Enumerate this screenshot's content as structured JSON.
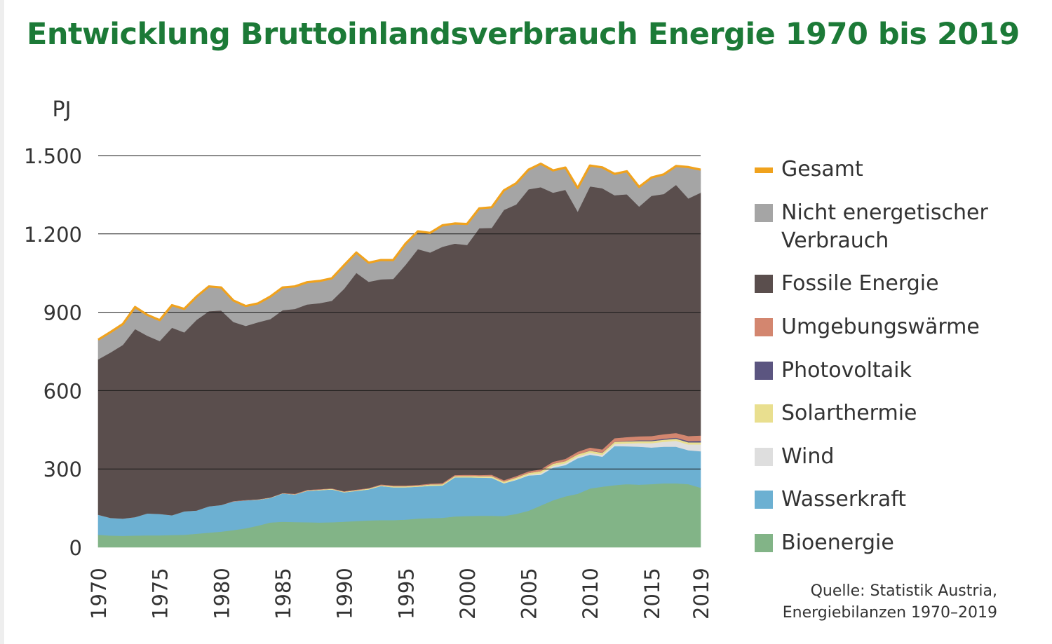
{
  "chart_data": {
    "type": "area",
    "stacked": true,
    "title": "Entwicklung Bruttoinlandsverbrauch Energie 1970 bis 2019",
    "ylabel": "PJ",
    "xlabel": "",
    "ylim": [
      0,
      1500
    ],
    "yticks": [
      0,
      300,
      600,
      900,
      1200,
      1500
    ],
    "ytick_labels": [
      "0",
      "300",
      "600",
      "900",
      "1.200",
      "1.500"
    ],
    "xticks": [
      1970,
      1975,
      1980,
      1985,
      1990,
      1995,
      2000,
      2005,
      2010,
      2015,
      2019
    ],
    "xtick_labels": [
      "1970",
      "1975",
      "1980",
      "1985",
      "1990",
      "1995",
      "2000",
      "2005",
      "2010",
      "2015",
      "2019"
    ],
    "grid": "horizontal",
    "legend_position": "right",
    "x": [
      1970,
      1971,
      1972,
      1973,
      1974,
      1975,
      1976,
      1977,
      1978,
      1979,
      1980,
      1981,
      1982,
      1983,
      1984,
      1985,
      1986,
      1987,
      1988,
      1989,
      1990,
      1991,
      1992,
      1993,
      1994,
      1995,
      1996,
      1997,
      1998,
      1999,
      2000,
      2001,
      2002,
      2003,
      2004,
      2005,
      2006,
      2007,
      2008,
      2009,
      2010,
      2011,
      2012,
      2013,
      2014,
      2015,
      2016,
      2017,
      2018,
      2019
    ],
    "series": [
      {
        "name": "Bioenergie",
        "color": "#82b487",
        "values": [
          48,
          45,
          44,
          45,
          46,
          46,
          47,
          48,
          52,
          56,
          60,
          66,
          73,
          83,
          95,
          98,
          97,
          96,
          95,
          96,
          98,
          101,
          103,
          104,
          104,
          106,
          110,
          112,
          113,
          118,
          120,
          121,
          121,
          120,
          128,
          140,
          160,
          180,
          195,
          205,
          225,
          232,
          238,
          242,
          240,
          242,
          245,
          245,
          242,
          228
        ]
      },
      {
        "name": "Wasserkraft",
        "color": "#6cb0d2",
        "values": [
          77,
          68,
          66,
          71,
          84,
          82,
          76,
          90,
          89,
          101,
          102,
          110,
          107,
          99,
          94,
          108,
          105,
          120,
          124,
          126,
          113,
          115,
          119,
          131,
          126,
          124,
          122,
          124,
          124,
          150,
          148,
          146,
          145,
          125,
          130,
          135,
          118,
          125,
          120,
          136,
          130,
          115,
          150,
          145,
          145,
          140,
          140,
          140,
          130,
          140
        ]
      },
      {
        "name": "Wind",
        "color": "#dedede",
        "values": [
          0,
          0,
          0,
          0,
          0,
          0,
          0,
          0,
          0,
          0,
          0,
          0,
          0,
          0,
          0,
          0,
          0,
          0,
          0,
          0,
          0,
          0,
          0,
          0,
          0,
          0,
          0,
          0,
          0,
          0,
          0,
          0,
          1,
          1,
          2,
          3,
          6,
          7,
          7,
          7,
          7,
          7,
          8,
          11,
          14,
          17,
          19,
          23,
          22,
          26
        ]
      },
      {
        "name": "Solarthermie",
        "color": "#e9df8f",
        "values": [
          0,
          0,
          0,
          0,
          0,
          0,
          0,
          0,
          0,
          0,
          0,
          0,
          0,
          1,
          1,
          1,
          1,
          2,
          2,
          2,
          2,
          3,
          3,
          3,
          4,
          4,
          4,
          5,
          5,
          5,
          6,
          6,
          6,
          6,
          7,
          7,
          8,
          8,
          8,
          8,
          8,
          8,
          8,
          8,
          8,
          8,
          8,
          8,
          8,
          8
        ]
      },
      {
        "name": "Photovoltaik",
        "color": "#5b5580",
        "values": [
          0,
          0,
          0,
          0,
          0,
          0,
          0,
          0,
          0,
          0,
          0,
          0,
          0,
          0,
          0,
          0,
          0,
          0,
          0,
          0,
          0,
          0,
          0,
          0,
          0,
          0,
          0,
          0,
          0,
          0,
          0,
          0,
          0,
          0,
          0,
          0,
          0,
          0,
          0,
          0,
          1,
          1,
          1,
          2,
          3,
          3,
          4,
          4,
          5,
          6
        ]
      },
      {
        "name": "Umgebungswärme",
        "color": "#d3866f",
        "values": [
          0,
          0,
          0,
          0,
          0,
          0,
          0,
          0,
          0,
          0,
          0,
          1,
          1,
          1,
          1,
          1,
          2,
          2,
          2,
          2,
          2,
          2,
          2,
          3,
          3,
          3,
          3,
          3,
          4,
          4,
          4,
          4,
          5,
          5,
          6,
          6,
          7,
          8,
          9,
          10,
          11,
          12,
          13,
          14,
          15,
          16,
          17,
          18,
          19,
          20
        ]
      },
      {
        "name": "Fossile Energie",
        "color": "#5a4e4d",
        "values": [
          595,
          633,
          665,
          720,
          680,
          662,
          718,
          685,
          730,
          747,
          745,
          686,
          667,
          678,
          683,
          700,
          708,
          710,
          712,
          718,
          775,
          830,
          790,
          785,
          791,
          845,
          903,
          885,
          905,
          886,
          880,
          945,
          945,
          1035,
          1040,
          1080,
          1080,
          1030,
          1030,
          920,
          1000,
          1000,
          930,
          930,
          880,
          920,
          920,
          950,
          910,
          930
        ]
      },
      {
        "name": "Nicht energetischer Verbrauch",
        "color": "#a5a5a5",
        "values": [
          75,
          78,
          80,
          84,
          80,
          80,
          86,
          90,
          89,
          95,
          88,
          82,
          76,
          72,
          86,
          87,
          87,
          85,
          85,
          86,
          90,
          78,
          73,
          74,
          72,
          81,
          68,
          75,
          82,
          75,
          80,
          76,
          77,
          75,
          81,
          75,
          90,
          85,
          85,
          90,
          80,
          80,
          82,
          88,
          75,
          70,
          75,
          72,
          120,
          88
        ]
      }
    ],
    "total": {
      "name": "Gesamt",
      "color": "#f0a21d",
      "values": [
        795,
        824,
        855,
        920,
        890,
        870,
        927,
        913,
        960,
        999,
        995,
        945,
        924,
        934,
        960,
        995,
        999,
        1015,
        1020,
        1030,
        1080,
        1129,
        1090,
        1100,
        1100,
        1163,
        1210,
        1204,
        1233,
        1240,
        1238,
        1298,
        1302,
        1367,
        1394,
        1446,
        1469,
        1443,
        1454,
        1376,
        1462,
        1455,
        1430,
        1440,
        1380,
        1416,
        1428,
        1460,
        1456,
        1446
      ]
    },
    "legend": [
      "Gesamt",
      "Nicht energetischer Verbrauch",
      "Fossile Energie",
      "Umgebungswärme",
      "Photovoltaik",
      "Solarthermie",
      "Wind",
      "Wasserkraft",
      "Bioenergie"
    ],
    "source": [
      "Quelle: Statistik Austria,",
      "Energiebilanzen 1970–2019"
    ]
  },
  "legend_items": [
    {
      "name": "Gesamt",
      "lines": [
        "Gesamt"
      ],
      "color": "#f0a21d",
      "kind": "line"
    },
    {
      "name": "Nicht energetischer Verbrauch",
      "lines": [
        "Nicht energetischer",
        "Verbrauch"
      ],
      "color": "#a5a5a5",
      "kind": "box"
    },
    {
      "name": "Fossile Energie",
      "lines": [
        "Fossile Energie"
      ],
      "color": "#5a4e4d",
      "kind": "box"
    },
    {
      "name": "Umgebungswärme",
      "lines": [
        "Umgebungswärme"
      ],
      "color": "#d3866f",
      "kind": "box"
    },
    {
      "name": "Photovoltaik",
      "lines": [
        "Photovoltaik"
      ],
      "color": "#5b5580",
      "kind": "box"
    },
    {
      "name": "Solarthermie",
      "lines": [
        "Solarthermie"
      ],
      "color": "#e9df8f",
      "kind": "box"
    },
    {
      "name": "Wind",
      "lines": [
        "Wind"
      ],
      "color": "#dedede",
      "kind": "box"
    },
    {
      "name": "Wasserkraft",
      "lines": [
        "Wasserkraft"
      ],
      "color": "#6cb0d2",
      "kind": "box"
    },
    {
      "name": "Bioenergie",
      "lines": [
        "Bioenergie"
      ],
      "color": "#82b487",
      "kind": "box"
    }
  ]
}
